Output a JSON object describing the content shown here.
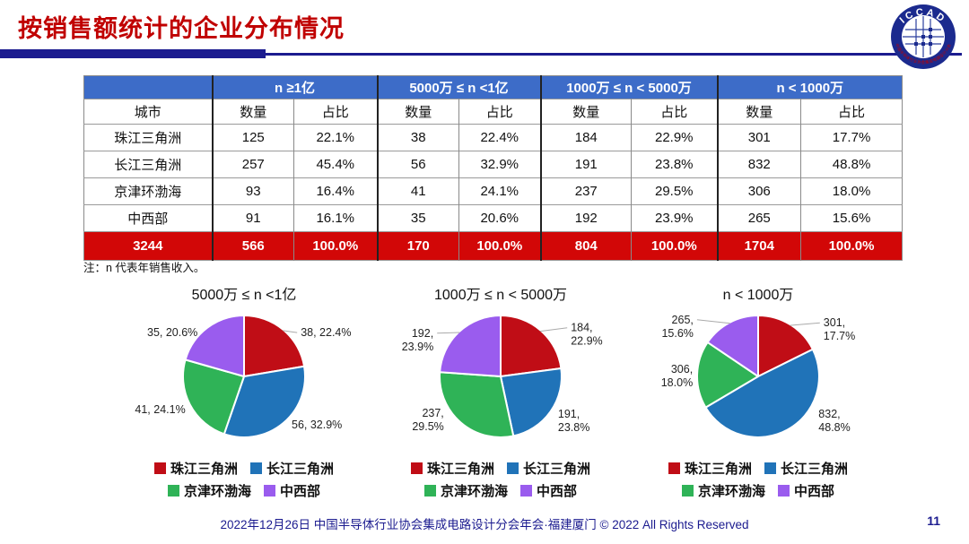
{
  "slide": {
    "title": "按销售额统计的企业分布情况",
    "footer": "2022年12月26日 中国半导体行业协会集成电路设计分会年会·福建厦门 © 2022 All Rights Reserved",
    "page_number": "11",
    "logo": {
      "acronym": "ICCAD",
      "ring_text": "中国半导体行业协会集成电路设计分会"
    }
  },
  "colors": {
    "title_red": "#c00000",
    "rule_navy": "#1b1b8f",
    "header_blue": "#3d6cc8",
    "total_row_red": "#d20707",
    "footer_navy": "#1b1b8f",
    "series": {
      "珠江三角洲": "#c00d16",
      "长江三角洲": "#2073b8",
      "京津环渤海": "#2fb357",
      "中西部": "#9a5cee"
    }
  },
  "table": {
    "city_header": "城市",
    "group_headers": [
      "n ≥1亿",
      "5000万 ≤ n <1亿",
      "1000万 ≤ n < 5000万",
      "n < 1000万"
    ],
    "sub_headers": [
      "数量",
      "占比"
    ],
    "rows": [
      {
        "city": "珠江三角洲",
        "cells": [
          "125",
          "22.1%",
          "38",
          "22.4%",
          "184",
          "22.9%",
          "301",
          "17.7%"
        ]
      },
      {
        "city": "长江三角洲",
        "cells": [
          "257",
          "45.4%",
          "56",
          "32.9%",
          "191",
          "23.8%",
          "832",
          "48.8%"
        ]
      },
      {
        "city": "京津环渤海",
        "cells": [
          "93",
          "16.4%",
          "41",
          "24.1%",
          "237",
          "29.5%",
          "306",
          "18.0%"
        ]
      },
      {
        "city": "中西部",
        "cells": [
          "91",
          "16.1%",
          "35",
          "20.6%",
          "192",
          "23.9%",
          "265",
          "15.6%"
        ]
      }
    ],
    "total": {
      "city": "3244",
      "cells": [
        "566",
        "100.0%",
        "170",
        "100.0%",
        "804",
        "100.0%",
        "1704",
        "100.0%"
      ]
    },
    "note": "注：n 代表年销售收入。"
  },
  "chart_data": [
    {
      "type": "pie",
      "title": "5000万 ≤ n <1亿",
      "legend_position": "bottom",
      "categories": [
        "珠江三角洲",
        "长江三角洲",
        "京津环渤海",
        "中西部"
      ],
      "values": [
        38,
        56,
        41,
        35
      ],
      "slices": [
        {
          "name": "珠江三角洲",
          "value": 38,
          "pct": "22.4%",
          "label_lines": [
            "38, 22.4%"
          ],
          "label_pos": [
            0.93,
            -0.66
          ],
          "label_anchor": "start",
          "leader": true
        },
        {
          "name": "长江三角洲",
          "value": 56,
          "pct": "32.9%",
          "label_lines": [
            "56, 32.9%"
          ],
          "label_pos": [
            0.78,
            0.85
          ],
          "label_anchor": "start",
          "leader": false
        },
        {
          "name": "京津环渤海",
          "value": 41,
          "pct": "24.1%",
          "label_lines": [
            "41, 24.1%"
          ],
          "label_pos": [
            -0.96,
            0.6
          ],
          "label_anchor": "end",
          "leader": false
        },
        {
          "name": "中西部",
          "value": 35,
          "pct": "20.6%",
          "label_lines": [
            "35, 20.6%"
          ],
          "label_pos": [
            -0.76,
            -0.66
          ],
          "label_anchor": "end",
          "leader": false
        }
      ]
    },
    {
      "type": "pie",
      "title": "1000万 ≤ n < 5000万",
      "legend_position": "bottom",
      "categories": [
        "珠江三角洲",
        "长江三角洲",
        "京津环渤海",
        "中西部"
      ],
      "values": [
        184,
        191,
        237,
        192
      ],
      "slices": [
        {
          "name": "珠江三角洲",
          "value": 184,
          "pct": "22.9%",
          "label_lines": [
            "184,",
            "22.9%"
          ],
          "label_pos": [
            1.15,
            -0.74
          ],
          "label_anchor": "start",
          "leader": true
        },
        {
          "name": "长江三角洲",
          "value": 191,
          "pct": "23.8%",
          "label_lines": [
            "191,",
            "23.8%"
          ],
          "label_pos": [
            0.94,
            0.68
          ],
          "label_anchor": "start",
          "leader": false
        },
        {
          "name": "京津环渤海",
          "value": 237,
          "pct": "29.5%",
          "label_lines": [
            "237,",
            "29.5%"
          ],
          "label_pos": [
            -0.93,
            0.66
          ],
          "label_anchor": "end",
          "leader": false
        },
        {
          "name": "中西部",
          "value": 192,
          "pct": "23.9%",
          "label_lines": [
            "192,",
            "23.9%"
          ],
          "label_pos": [
            -1.1,
            -0.65
          ],
          "label_anchor": "end",
          "leader": true
        }
      ]
    },
    {
      "type": "pie",
      "title": "n < 1000万",
      "legend_position": "bottom",
      "categories": [
        "珠江三角洲",
        "长江三角洲",
        "京津环渤海",
        "中西部"
      ],
      "values": [
        301,
        832,
        306,
        265
      ],
      "slices": [
        {
          "name": "珠江三角洲",
          "value": 301,
          "pct": "17.7%",
          "label_lines": [
            "301,",
            "17.7%"
          ],
          "label_pos": [
            1.07,
            -0.82
          ],
          "label_anchor": "start",
          "leader": true
        },
        {
          "name": "长江三角洲",
          "value": 832,
          "pct": "48.8%",
          "label_lines": [
            "832,",
            "48.8%"
          ],
          "label_pos": [
            0.99,
            0.68
          ],
          "label_anchor": "start",
          "leader": false
        },
        {
          "name": "京津环渤海",
          "value": 306,
          "pct": "18.0%",
          "label_lines": [
            "306,",
            "18.0%"
          ],
          "label_pos": [
            -1.07,
            -0.06
          ],
          "label_anchor": "end",
          "leader": false
        },
        {
          "name": "中西部",
          "value": 265,
          "pct": "15.6%",
          "label_lines": [
            "265,",
            "15.6%"
          ],
          "label_pos": [
            -1.06,
            -0.87
          ],
          "label_anchor": "end",
          "leader": true
        }
      ]
    }
  ]
}
